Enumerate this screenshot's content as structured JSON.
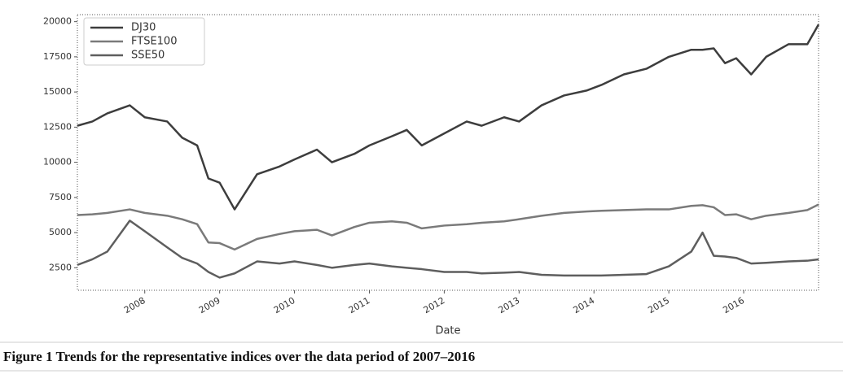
{
  "chart_data": {
    "type": "line",
    "x_label": "Date",
    "x": [
      2007.1,
      2007.3,
      2007.5,
      2007.8,
      2008.0,
      2008.3,
      2008.5,
      2008.7,
      2008.85,
      2009.0,
      2009.2,
      2009.5,
      2009.8,
      2010.0,
      2010.3,
      2010.5,
      2010.8,
      2011.0,
      2011.3,
      2011.5,
      2011.7,
      2012.0,
      2012.3,
      2012.5,
      2012.8,
      2013.0,
      2013.3,
      2013.6,
      2013.9,
      2014.1,
      2014.4,
      2014.7,
      2015.0,
      2015.3,
      2015.45,
      2015.6,
      2015.75,
      2015.9,
      2016.1,
      2016.3,
      2016.6,
      2016.85,
      2017.0
    ],
    "series": [
      {
        "name": "DJ30",
        "color": "#3d3d3d",
        "values": [
          12600,
          12900,
          13480,
          14050,
          13200,
          12900,
          11750,
          11200,
          8850,
          8550,
          6650,
          9150,
          9700,
          10200,
          10900,
          10000,
          10600,
          11200,
          11850,
          12300,
          11200,
          12050,
          12900,
          12600,
          13200,
          12900,
          14050,
          14750,
          15100,
          15500,
          16250,
          16650,
          17500,
          18000,
          18000,
          18100,
          17050,
          17400,
          16250,
          17500,
          18400,
          18400,
          19800
        ]
      },
      {
        "name": "FTSE100",
        "color": "#7a7a7a",
        "values": [
          6250,
          6300,
          6400,
          6650,
          6400,
          6200,
          5950,
          5600,
          4300,
          4250,
          3800,
          4550,
          4900,
          5100,
          5200,
          4800,
          5400,
          5700,
          5800,
          5700,
          5300,
          5500,
          5600,
          5700,
          5800,
          5950,
          6200,
          6400,
          6500,
          6550,
          6600,
          6650,
          6650,
          6900,
          6950,
          6800,
          6250,
          6300,
          5950,
          6200,
          6400,
          6600,
          7000
        ]
      },
      {
        "name": "SSE50",
        "color": "#5e5e5e",
        "values": [
          2700,
          3100,
          3650,
          5850,
          5100,
          3950,
          3200,
          2800,
          2200,
          1800,
          2100,
          2950,
          2800,
          2950,
          2700,
          2500,
          2700,
          2800,
          2600,
          2500,
          2400,
          2200,
          2200,
          2100,
          2150,
          2200,
          2000,
          1950,
          1950,
          1950,
          2000,
          2050,
          2600,
          3650,
          5000,
          3350,
          3300,
          3200,
          2800,
          2850,
          2950,
          3000,
          3100
        ]
      }
    ],
    "xlim": [
      2007.1,
      2017.0
    ],
    "xticks": [
      2008,
      2009,
      2010,
      2011,
      2012,
      2013,
      2014,
      2015,
      2016
    ],
    "ylim": [
      900,
      20500
    ],
    "yticks": [
      2500,
      5000,
      7500,
      10000,
      12500,
      15000,
      17500,
      20000
    ],
    "legend": "upper left"
  },
  "caption": "Figure 1 Trends for the representative indices over the data period of 2007–2016"
}
